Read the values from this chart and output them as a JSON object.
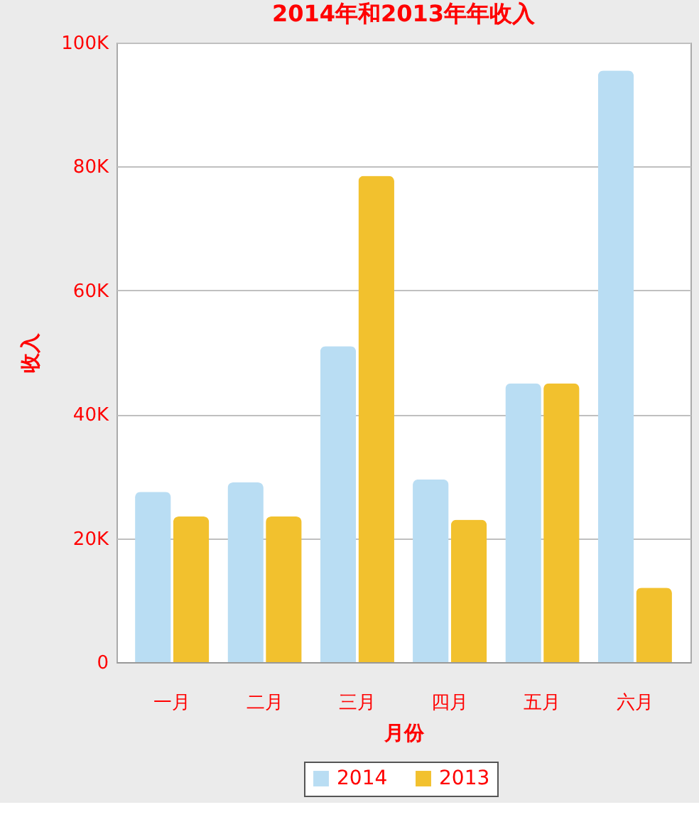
{
  "chart_data": {
    "type": "bar",
    "title": "2014年和2013年年收入",
    "xlabel": "月份",
    "ylabel": "收入",
    "categories": [
      "一月",
      "二月",
      "三月",
      "四月",
      "五月",
      "六月"
    ],
    "series": [
      {
        "name": "2014",
        "color": "#b9ddf3",
        "values": [
          27500,
          29000,
          51000,
          29500,
          45000,
          95500
        ]
      },
      {
        "name": "2013",
        "color": "#f2c12e",
        "values": [
          23500,
          23500,
          78500,
          23000,
          45000,
          12000
        ]
      }
    ],
    "ylim": [
      0,
      100000
    ],
    "yticks": [
      0,
      {
        "value": 20000,
        "label": "20K"
      },
      {
        "value": 40000,
        "label": "40K"
      },
      {
        "value": 60000,
        "label": "60K"
      },
      {
        "value": 80000,
        "label": "80K"
      },
      {
        "value": 100000,
        "label": "100K"
      }
    ],
    "grid": "y",
    "legend": "bottom"
  }
}
